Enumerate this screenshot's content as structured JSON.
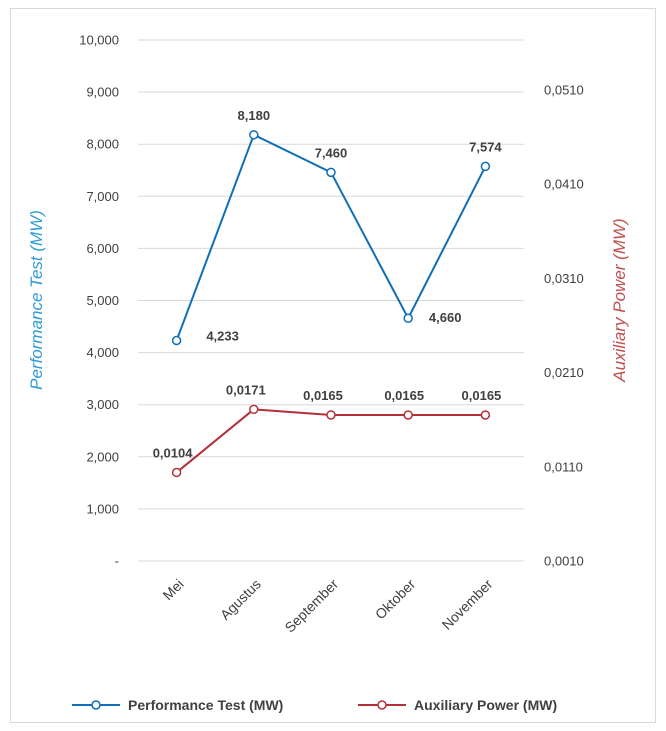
{
  "chart_data": {
    "type": "line",
    "categories": [
      "Mei",
      "Agustus",
      "September",
      "Oktober",
      "November"
    ],
    "left_axis": {
      "title": "Performance Test (MW)",
      "color": "#2e9bd6",
      "range": [
        0,
        10000
      ],
      "step": 1000,
      "tick_labels": [
        "-",
        "1,000",
        "2,000",
        "3,000",
        "4,000",
        "5,000",
        "6,000",
        "7,000",
        "8,000",
        "9,000",
        "10,000"
      ]
    },
    "right_axis": {
      "title": "Auxiliary Power (MW)",
      "color": "#c0504d",
      "range": [
        0.001,
        0.0563
      ],
      "tick_values": [
        0.001,
        0.011,
        0.021,
        0.031,
        0.041,
        0.051
      ],
      "tick_labels": [
        "0,0010",
        "0,0110",
        "0,0210",
        "0,0310",
        "0,0410",
        "0,0510"
      ]
    },
    "series": [
      {
        "name": "Performance Test (MW)",
        "axis": "left",
        "color": "#0f6eb5",
        "values": [
          4233,
          8180,
          7460,
          4660,
          7574
        ],
        "data_labels": [
          "4,233",
          "8,180",
          "7,460",
          "4,660",
          "7,574"
        ]
      },
      {
        "name": "Auxiliary Power (MW)",
        "axis": "right",
        "color": "#b3303a",
        "values": [
          0.0104,
          0.0171,
          0.0165,
          0.0165,
          0.0165
        ],
        "data_labels": [
          "0,0104",
          "0,0171",
          "0,0165",
          "0,0165",
          "0,0165"
        ]
      }
    ],
    "gridlines": true,
    "legend_position": "bottom"
  }
}
